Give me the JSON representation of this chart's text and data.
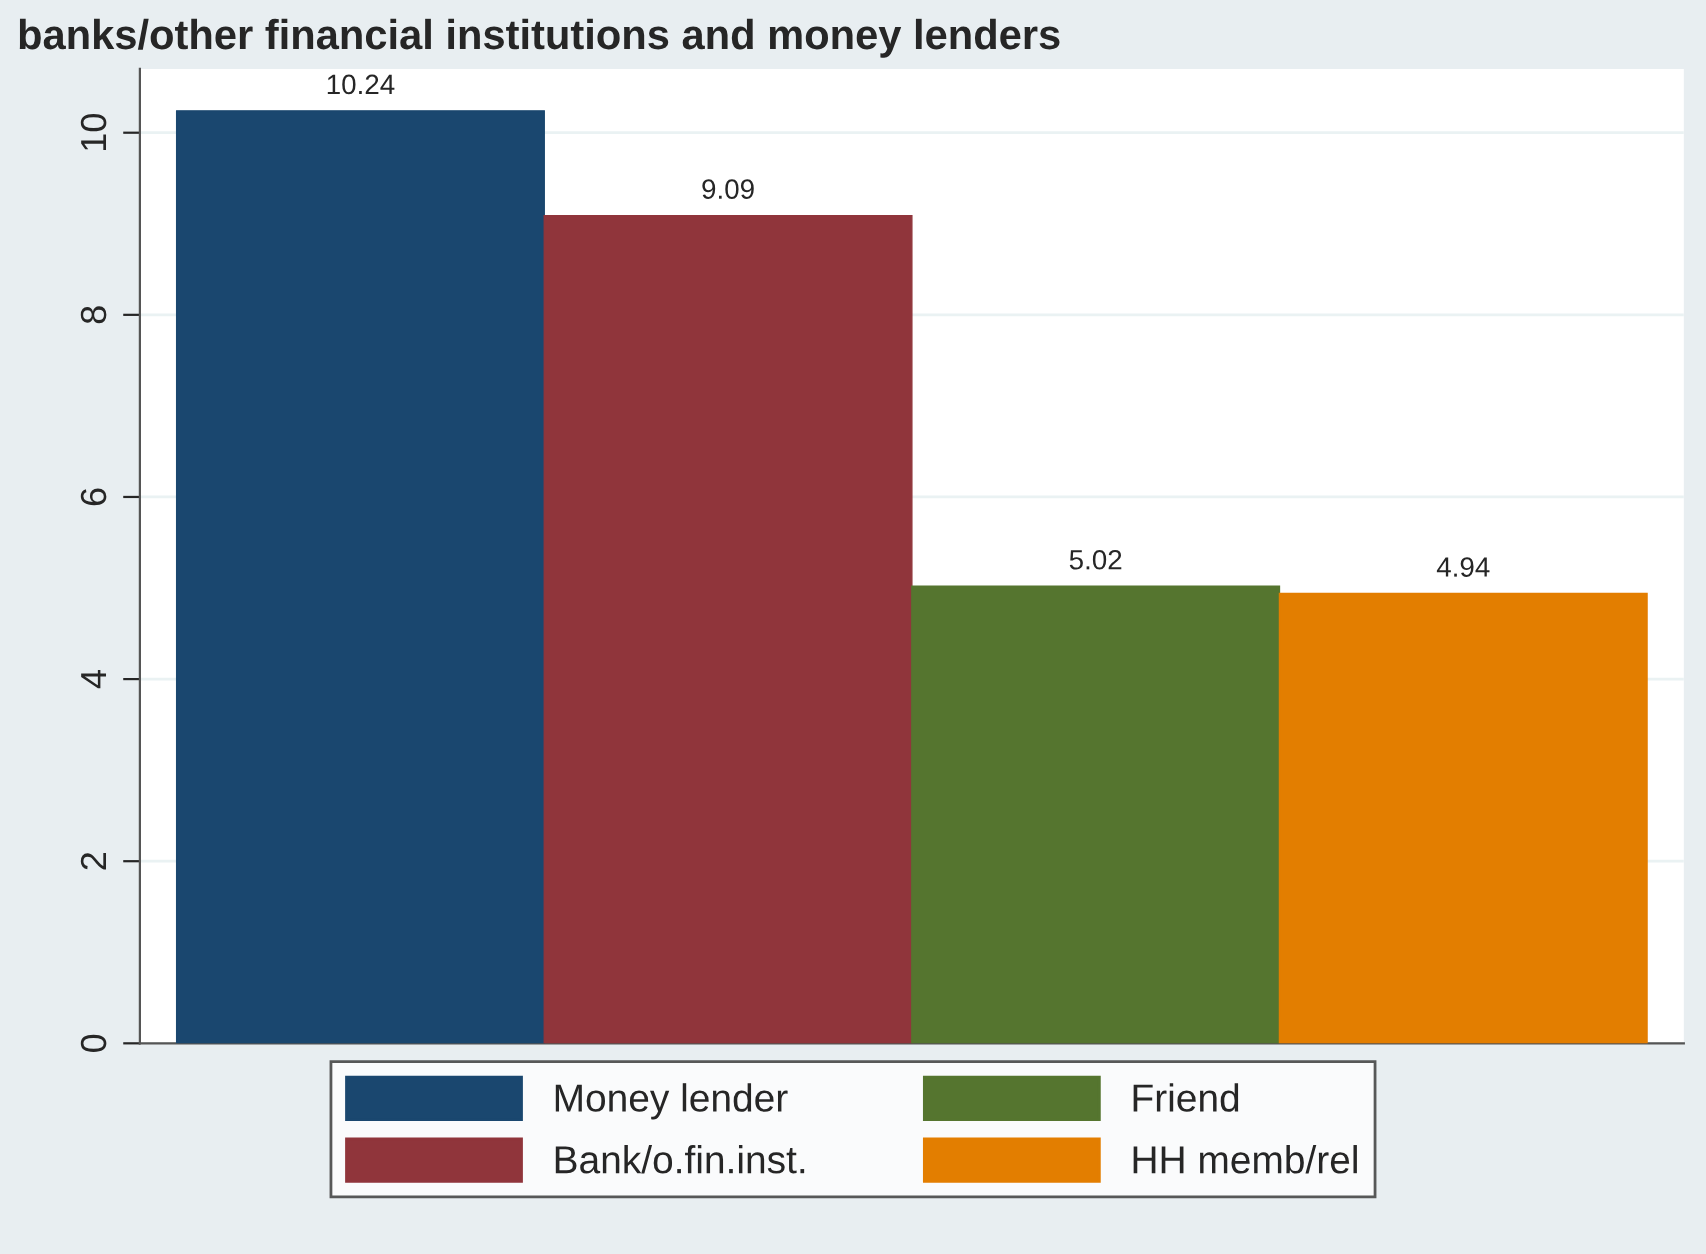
{
  "chart_data": {
    "type": "bar",
    "title": "banks/other financial institutions and money lenders",
    "categories": [
      null
    ],
    "series": [
      {
        "name": "Money lender",
        "color": "#1a476f",
        "values": [
          10.24
        ]
      },
      {
        "name": "Bank/o.fin.inst.",
        "color": "#90353b",
        "values": [
          9.09
        ]
      },
      {
        "name": "Friend",
        "color": "#55752f",
        "values": [
          5.02
        ]
      },
      {
        "name": "HH memb/rel",
        "color": "#e37e00",
        "values": [
          4.94
        ]
      }
    ],
    "ylim": [
      0,
      10.7
    ],
    "yticks": [
      0,
      2,
      4,
      6,
      8,
      10
    ],
    "grid": "y",
    "legend": "bottom",
    "data_labels": true
  }
}
